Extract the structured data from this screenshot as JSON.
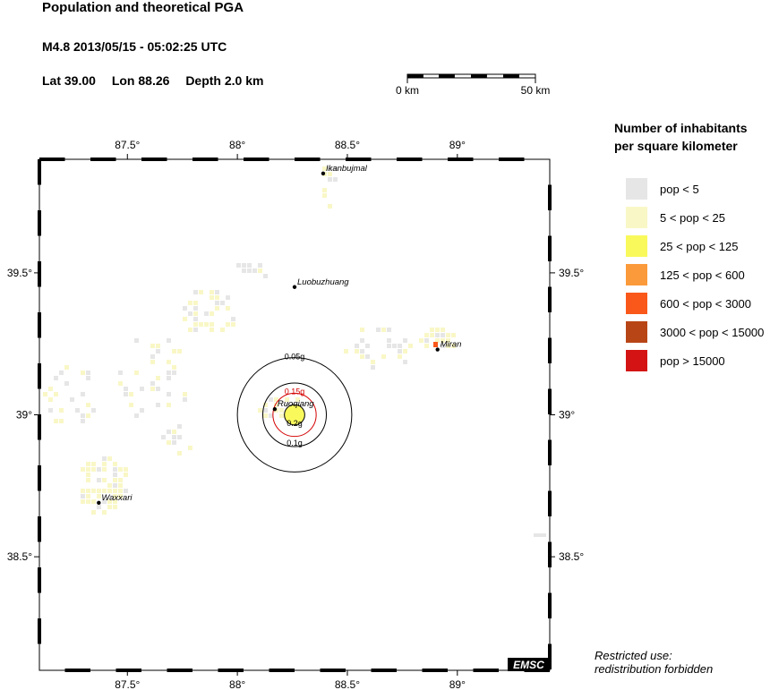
{
  "header": {
    "title": "Population and theoretical PGA",
    "event": "M4.8  2013/05/15 - 05:02:25 UTC",
    "lat": "Lat 39.00",
    "lon": "Lon  88.26",
    "depth": "Depth  2.0 km"
  },
  "scale_bar": {
    "left_label": "0 km",
    "right_label": "50 km"
  },
  "map": {
    "extent": {
      "lon": [
        87.1,
        89.42
      ],
      "lat": [
        38.1,
        39.9
      ]
    },
    "lon_ticks": [
      87.5,
      88,
      88.5,
      89
    ],
    "lon_labels": [
      "87.5°",
      "88°",
      "88.5°",
      "89°"
    ],
    "lat_ticks": [
      39.5,
      39,
      38.5
    ],
    "lat_labels": [
      "39.5°",
      "39°",
      "38.5°"
    ],
    "epicenter": {
      "lon": 88.26,
      "lat": 39.0
    },
    "cities": [
      {
        "name": "Ikanbujmal",
        "lon": 88.39,
        "lat": 39.85
      },
      {
        "name": "Luobuzhuang",
        "lon": 88.26,
        "lat": 39.45
      },
      {
        "name": "Miran",
        "lon": 88.91,
        "lat": 39.23
      },
      {
        "name": "Ruoqiang",
        "lon": 88.17,
        "lat": 39.02
      },
      {
        "name": "Waxxari",
        "lon": 87.37,
        "lat": 38.69
      }
    ],
    "pga_contours": [
      {
        "label": "0.05g",
        "radius_km": 22.5,
        "color": "#000000"
      },
      {
        "label": "0.1g",
        "radius_km": 12.5,
        "color": "#000000"
      },
      {
        "label": "0.15g",
        "radius_km": 8.5,
        "color": "#d40000"
      },
      {
        "label": "0.2g",
        "radius_km": 4.0,
        "color": "#000000"
      }
    ],
    "credit": "EMSC"
  },
  "legend": {
    "title_line1": "Number of inhabitants",
    "title_line2": "per square kilometer",
    "items": [
      {
        "label": "pop < 5",
        "color": "#e6e6e6"
      },
      {
        "label": "5 < pop < 25",
        "color": "#f9f7c6"
      },
      {
        "label": "25 < pop < 125",
        "color": "#f9f95c"
      },
      {
        "label": "125 < pop < 600",
        "color": "#fb9a3a"
      },
      {
        "label": "600 < pop < 3000",
        "color": "#f9581a"
      },
      {
        "label": "3000 < pop < 15000",
        "color": "#b84516"
      },
      {
        "label": "pop > 15000",
        "color": "#d41414"
      }
    ]
  },
  "notice": {
    "line1": "Restricted use:",
    "line2": "redistribution forbidden"
  }
}
